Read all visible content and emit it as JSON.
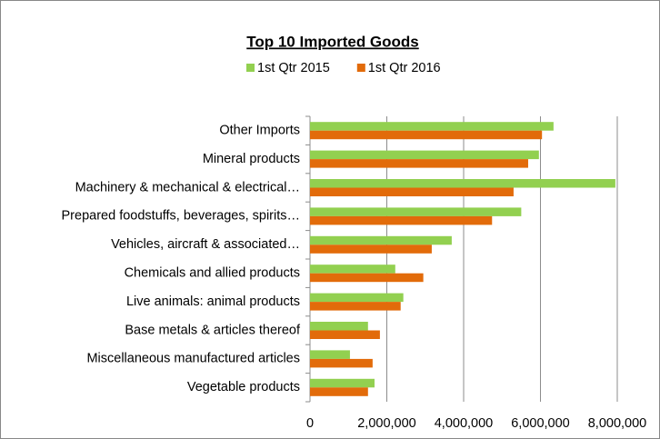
{
  "chart_data": {
    "type": "bar",
    "orientation": "horizontal",
    "title": "Top 10 Imported Goods",
    "categories": [
      "Other Imports",
      "Mineral products",
      "Machinery & mechanical & electrical…",
      "Prepared foodstuffs, beverages, spirits…",
      "Vehicles, aircraft & associated…",
      "Chemicals and allied products",
      "Live animals: animal products",
      "Base metals & articles thereof",
      "Miscellaneous manufactured articles",
      "Vegetable products"
    ],
    "series": [
      {
        "name": "1st Qtr 2015",
        "color": "#92d050",
        "values": [
          6340000,
          5960000,
          7950000,
          5500000,
          3690000,
          2220000,
          2430000,
          1510000,
          1040000,
          1680000
        ]
      },
      {
        "name": "1st Qtr 2016",
        "color": "#e26b0a",
        "values": [
          6040000,
          5680000,
          5300000,
          4740000,
          3170000,
          2950000,
          2360000,
          1820000,
          1630000,
          1510000
        ]
      }
    ],
    "xlim": [
      0,
      8000000
    ],
    "xticks": [
      0,
      {
        "value": 2000000,
        "label": "2,000,000"
      },
      {
        "value": 4000000,
        "label": "4,000,000"
      },
      {
        "value": 6000000,
        "label": "6,000,000"
      },
      {
        "value": 8000000,
        "label": "8,000,000"
      }
    ],
    "grid": true,
    "legend": "top"
  }
}
